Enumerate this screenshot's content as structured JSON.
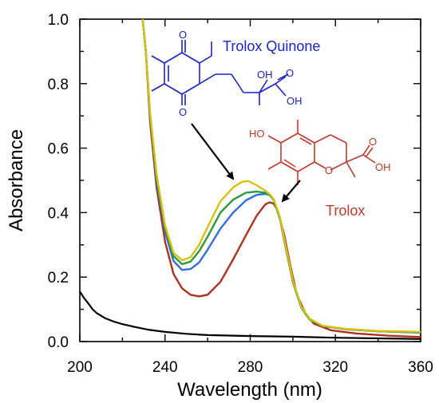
{
  "chart_data": {
    "type": "line",
    "title": "",
    "xlabel": "Wavelength (nm)",
    "ylabel": "Absorbance",
    "xlim": [
      200,
      360
    ],
    "ylim": [
      0.0,
      1.0
    ],
    "x_ticks": [
      "200",
      "240",
      "280",
      "320",
      "360"
    ],
    "y_ticks": [
      "0.0",
      "0.2",
      "0.4",
      "0.6",
      "0.8",
      "1.0"
    ],
    "grid": false,
    "legend": "none",
    "series": [
      {
        "color": "#000000",
        "points": [
          [
            200,
            0.155
          ],
          [
            202,
            0.135
          ],
          [
            204,
            0.118
          ],
          [
            206,
            0.1
          ],
          [
            208,
            0.088
          ],
          [
            212,
            0.072
          ],
          [
            216,
            0.062
          ],
          [
            220,
            0.054
          ],
          [
            226,
            0.045
          ],
          [
            232,
            0.037
          ],
          [
            240,
            0.03
          ],
          [
            250,
            0.024
          ],
          [
            260,
            0.02
          ],
          [
            280,
            0.017
          ],
          [
            300,
            0.015
          ],
          [
            320,
            0.012
          ],
          [
            340,
            0.01
          ],
          [
            360,
            0.008
          ]
        ]
      },
      {
        "color": "#b03020",
        "points": [
          [
            229.5,
            1.0
          ],
          [
            231,
            0.9
          ],
          [
            233,
            0.68
          ],
          [
            236,
            0.48
          ],
          [
            240,
            0.31
          ],
          [
            244,
            0.21
          ],
          [
            248,
            0.165
          ],
          [
            252,
            0.145
          ],
          [
            256,
            0.14
          ],
          [
            260,
            0.145
          ],
          [
            266,
            0.185
          ],
          [
            272,
            0.255
          ],
          [
            278,
            0.33
          ],
          [
            283,
            0.39
          ],
          [
            287,
            0.425
          ],
          [
            289,
            0.432
          ],
          [
            291,
            0.428
          ],
          [
            293,
            0.405
          ],
          [
            296,
            0.33
          ],
          [
            299,
            0.23
          ],
          [
            302,
            0.145
          ],
          [
            306,
            0.085
          ],
          [
            310,
            0.055
          ],
          [
            318,
            0.035
          ],
          [
            330,
            0.025
          ],
          [
            345,
            0.018
          ],
          [
            360,
            0.014
          ]
        ]
      },
      {
        "color": "#2f6fe0",
        "points": [
          [
            229.5,
            1.0
          ],
          [
            231,
            0.9
          ],
          [
            233,
            0.7
          ],
          [
            236,
            0.5
          ],
          [
            240,
            0.34
          ],
          [
            244,
            0.25
          ],
          [
            248,
            0.222
          ],
          [
            252,
            0.225
          ],
          [
            256,
            0.245
          ],
          [
            260,
            0.285
          ],
          [
            266,
            0.35
          ],
          [
            272,
            0.4
          ],
          [
            278,
            0.438
          ],
          [
            283,
            0.455
          ],
          [
            287,
            0.458
          ],
          [
            289,
            0.455
          ],
          [
            291,
            0.44
          ],
          [
            294,
            0.38
          ],
          [
            297,
            0.28
          ],
          [
            300,
            0.185
          ],
          [
            304,
            0.105
          ],
          [
            308,
            0.068
          ],
          [
            314,
            0.048
          ],
          [
            325,
            0.038
          ],
          [
            340,
            0.032
          ],
          [
            360,
            0.028
          ]
        ]
      },
      {
        "color": "#2a9a3c",
        "points": [
          [
            229.5,
            1.0
          ],
          [
            231,
            0.9
          ],
          [
            233,
            0.7
          ],
          [
            236,
            0.51
          ],
          [
            240,
            0.35
          ],
          [
            244,
            0.265
          ],
          [
            248,
            0.24
          ],
          [
            252,
            0.248
          ],
          [
            256,
            0.28
          ],
          [
            260,
            0.325
          ],
          [
            266,
            0.4
          ],
          [
            272,
            0.44
          ],
          [
            278,
            0.462
          ],
          [
            283,
            0.465
          ],
          [
            287,
            0.462
          ],
          [
            289,
            0.455
          ],
          [
            291,
            0.44
          ],
          [
            294,
            0.38
          ],
          [
            297,
            0.28
          ],
          [
            300,
            0.185
          ],
          [
            304,
            0.105
          ],
          [
            308,
            0.068
          ],
          [
            314,
            0.048
          ],
          [
            325,
            0.038
          ],
          [
            340,
            0.032
          ],
          [
            360,
            0.028
          ]
        ]
      },
      {
        "color": "#d8c010",
        "points": [
          [
            229.5,
            1.0
          ],
          [
            231,
            0.9
          ],
          [
            233,
            0.71
          ],
          [
            236,
            0.52
          ],
          [
            240,
            0.36
          ],
          [
            244,
            0.275
          ],
          [
            248,
            0.252
          ],
          [
            252,
            0.262
          ],
          [
            256,
            0.3
          ],
          [
            260,
            0.355
          ],
          [
            266,
            0.435
          ],
          [
            272,
            0.478
          ],
          [
            276,
            0.495
          ],
          [
            279,
            0.498
          ],
          [
            283,
            0.485
          ],
          [
            287,
            0.468
          ],
          [
            289,
            0.458
          ],
          [
            291,
            0.442
          ],
          [
            294,
            0.385
          ],
          [
            297,
            0.285
          ],
          [
            300,
            0.19
          ],
          [
            304,
            0.108
          ],
          [
            308,
            0.07
          ],
          [
            314,
            0.049
          ],
          [
            325,
            0.039
          ],
          [
            340,
            0.033
          ],
          [
            360,
            0.03
          ]
        ]
      }
    ],
    "annotations": {
      "quinone_label": "Trolox Quinone",
      "trolox_label": "Trolox",
      "quinone_color": "#1a22c8",
      "trolox_color": "#c0392b"
    }
  },
  "structures": {
    "quinone_atoms": [
      "O",
      "O",
      "OH",
      "O",
      "OH"
    ],
    "trolox_atoms": [
      "HO",
      "O",
      "O",
      "OH"
    ]
  }
}
